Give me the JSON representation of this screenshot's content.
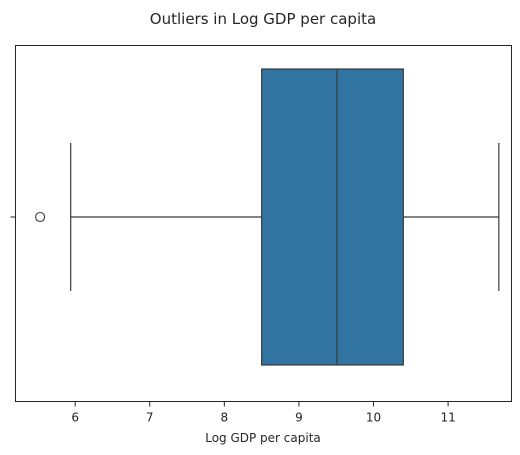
{
  "chart_data": {
    "type": "boxplot",
    "title": "Outliers in Log GDP per capita",
    "xlabel": "Log GDP per capita",
    "ylabel": "",
    "xlim": [
      5.2,
      11.85
    ],
    "xticks": [
      6,
      7,
      8,
      9,
      10,
      11
    ],
    "grid": false,
    "legend": "none",
    "series": [
      {
        "whisker_low": 5.94,
        "q1": 8.5,
        "median": 9.51,
        "q3": 10.4,
        "whisker_high": 11.68,
        "outliers": [
          5.53
        ]
      }
    ],
    "colors": {
      "box_fill": "#3274a1",
      "lines": "#3b3b3b",
      "axes": "#262626"
    }
  }
}
